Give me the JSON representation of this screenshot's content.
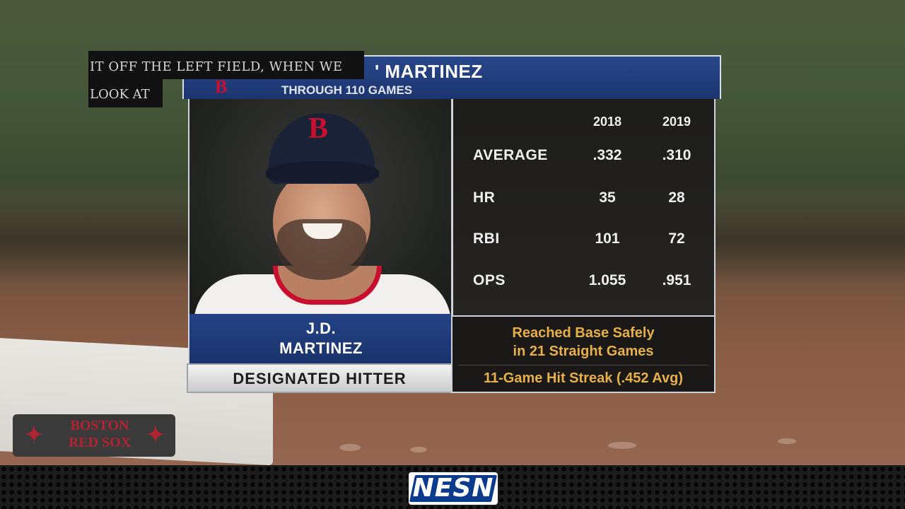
{
  "broadcast": {
    "network_logo": "NESN",
    "caption_line1": "IT OFF THE LEFT FIELD, WHEN WE",
    "caption_line2": "LOOK AT"
  },
  "graphic": {
    "header_title": "' MARTINEZ",
    "header_subtitle": "THROUGH 110 GAMES",
    "team_logo": "B",
    "player_first": "J.D.",
    "player_last": "MARTINEZ",
    "position": "DESIGNATED HITTER",
    "cap_letter": "B",
    "years": [
      "2018",
      "2019"
    ],
    "stats": [
      {
        "label": "AVERAGE",
        "v2018": ".332",
        "v2019": ".310"
      },
      {
        "label": "HR",
        "v2018": "35",
        "v2019": "28"
      },
      {
        "label": "RBI",
        "v2018": "101",
        "v2019": "72"
      },
      {
        "label": "OPS",
        "v2018": "1.055",
        "v2019": ".951"
      }
    ],
    "note_line1": "Reached Base Safely",
    "note_line2": "in 21 Straight Games",
    "note_streak": "11-Game Hit Streak (.452 Avg)"
  },
  "base_plate": {
    "word1": "BOSTON",
    "word2": "RED SOX"
  },
  "colors": {
    "header_blue": "#1c3570",
    "note_gold": "#e8b04a",
    "red_sox_red": "#c8102e"
  }
}
